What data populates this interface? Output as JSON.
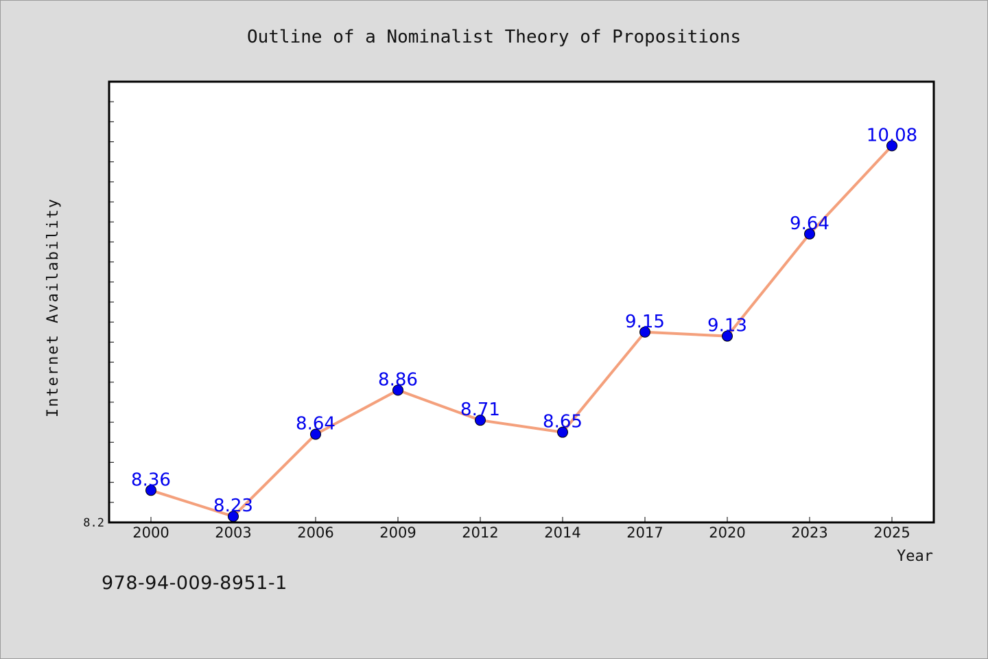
{
  "chart_data": {
    "type": "line",
    "title": "Outline of a Nominalist Theory of Propositions",
    "xlabel": "Year",
    "ylabel": "Internet Availability",
    "categories": [
      "2000",
      "2003",
      "2006",
      "2009",
      "2012",
      "2014",
      "2017",
      "2020",
      "2023",
      "2025"
    ],
    "values": [
      8.36,
      8.23,
      8.64,
      8.86,
      8.71,
      8.65,
      9.15,
      9.13,
      9.64,
      10.08
    ],
    "data_labels": [
      "8.36",
      "8.23",
      "8.64",
      "8.86",
      "8.71",
      "8.65",
      "9.15",
      "9.13",
      "9.64",
      "10.08"
    ],
    "ylim": [
      8.2,
      10.4
    ],
    "y_tick_labels": [
      "8.2"
    ],
    "grid": false,
    "line_color": "#f4a07c",
    "marker_color": "#0000ee",
    "label_color": "#0000ee"
  },
  "footer": {
    "isbn": "978-94-009-8951-1"
  }
}
